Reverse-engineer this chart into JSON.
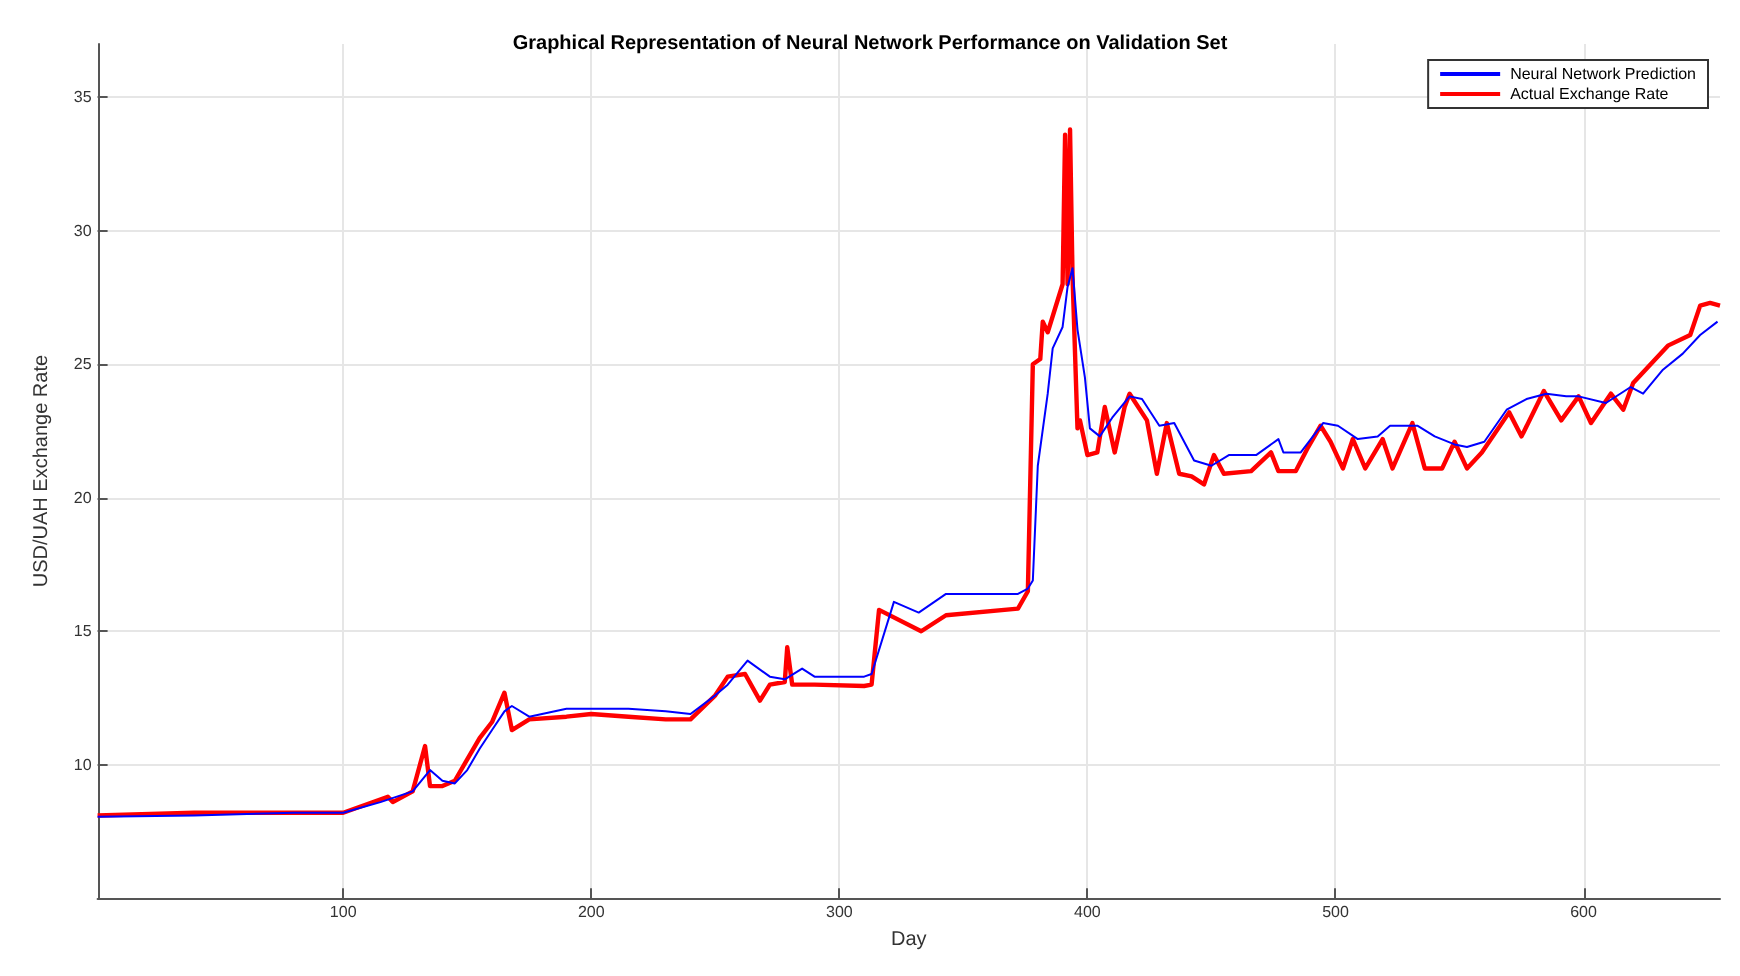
{
  "chart_data": {
    "type": "line",
    "title": "Graphical Representation of Neural Network Performance on Validation Set",
    "xlabel": "Day",
    "ylabel": "USD/UAH Exchange Rate",
    "xlim": [
      1,
      655
    ],
    "xticks": [
      100,
      200,
      300,
      400,
      500,
      600
    ],
    "ylim": [
      5,
      37
    ],
    "yticks": [
      10,
      15,
      20,
      25,
      30,
      35
    ],
    "grid": true,
    "legend": "top right",
    "marker": "none",
    "line_style": "solid",
    "series": [
      {
        "name": "Neural Network Prediction",
        "color": "#0000ff",
        "x": [
          1,
          40,
          80,
          100,
          115,
          128,
          135,
          140,
          145,
          150,
          155,
          160,
          165,
          168,
          175,
          190,
          200,
          215,
          230,
          240,
          250,
          255,
          263,
          272,
          278,
          285,
          290,
          310,
          313,
          322,
          332,
          343,
          372,
          376,
          378,
          380,
          384,
          386,
          390,
          392,
          394,
          396,
          399,
          401,
          405,
          410,
          417,
          422,
          429,
          435,
          443,
          450,
          457,
          468,
          477,
          479,
          486,
          495,
          501,
          509,
          517,
          522,
          533,
          540,
          548,
          553,
          560,
          569,
          577,
          585,
          593,
          598,
          609,
          619,
          624,
          632,
          640,
          647,
          654
        ],
        "values": [
          8.05,
          8.1,
          8.2,
          8.2,
          8.6,
          9.0,
          9.8,
          9.4,
          9.3,
          9.8,
          10.6,
          11.3,
          12.0,
          12.2,
          11.8,
          12.1,
          12.1,
          12.1,
          12.0,
          11.9,
          12.6,
          13.0,
          13.9,
          13.3,
          13.2,
          13.6,
          13.3,
          13.3,
          13.4,
          16.1,
          15.7,
          16.4,
          16.4,
          16.6,
          16.9,
          21.2,
          23.9,
          25.6,
          26.4,
          27.9,
          28.6,
          26.3,
          24.5,
          22.6,
          22.3,
          23.0,
          23.8,
          23.7,
          22.7,
          22.8,
          21.4,
          21.2,
          21.6,
          21.6,
          22.2,
          21.7,
          21.7,
          22.8,
          22.7,
          22.2,
          22.3,
          22.7,
          22.7,
          22.3,
          22.0,
          21.9,
          22.1,
          23.3,
          23.7,
          23.9,
          23.8,
          23.8,
          23.55,
          24.15,
          23.9,
          24.8,
          25.4,
          26.1,
          26.6
        ]
      },
      {
        "name": "Actual Exchange Rate",
        "color": "#ff0000",
        "x": [
          1,
          40,
          80,
          100,
          118,
          120,
          128,
          133,
          135,
          140,
          145,
          150,
          155,
          160,
          165,
          168,
          175,
          190,
          200,
          215,
          230,
          240,
          250,
          255,
          262,
          268,
          272,
          278,
          279,
          281,
          290,
          310,
          313,
          316,
          333,
          343,
          372,
          376,
          378,
          381,
          382,
          384,
          387,
          390,
          391,
          392,
          393,
          394,
          396,
          397,
          400,
          404,
          407,
          411,
          415,
          417,
          424,
          428,
          432,
          437,
          442,
          447,
          451,
          455,
          466,
          474,
          477,
          484,
          489,
          494,
          498,
          503,
          507,
          512,
          519,
          523,
          531,
          536,
          543,
          548,
          553,
          559,
          570,
          575,
          584,
          591,
          598,
          603,
          611,
          616,
          620,
          623,
          634,
          643,
          647,
          651,
          655
        ],
        "values": [
          8.1,
          8.2,
          8.2,
          8.2,
          8.8,
          8.6,
          9.0,
          10.7,
          9.2,
          9.2,
          9.4,
          10.2,
          11.0,
          11.6,
          12.7,
          11.3,
          11.7,
          11.8,
          11.9,
          11.8,
          11.7,
          11.7,
          12.6,
          13.3,
          13.4,
          12.4,
          13.0,
          13.1,
          14.4,
          13.0,
          13.0,
          12.95,
          13.0,
          15.8,
          15.0,
          15.6,
          15.85,
          16.5,
          25.0,
          25.2,
          26.6,
          26.2,
          27.1,
          28.0,
          33.6,
          28.0,
          33.8,
          28.3,
          22.6,
          22.9,
          21.6,
          21.7,
          23.4,
          21.7,
          23.4,
          23.9,
          22.9,
          20.9,
          22.8,
          20.9,
          20.8,
          20.5,
          21.6,
          20.9,
          21.0,
          21.7,
          21.0,
          21.0,
          21.9,
          22.7,
          22.1,
          21.1,
          22.2,
          21.1,
          22.2,
          21.1,
          22.8,
          21.1,
          21.1,
          22.1,
          21.1,
          21.7,
          23.2,
          22.3,
          24.0,
          22.9,
          23.8,
          22.8,
          23.9,
          23.3,
          24.3,
          24.6,
          25.7,
          26.1,
          27.2,
          27.3,
          27.2
        ]
      }
    ]
  }
}
